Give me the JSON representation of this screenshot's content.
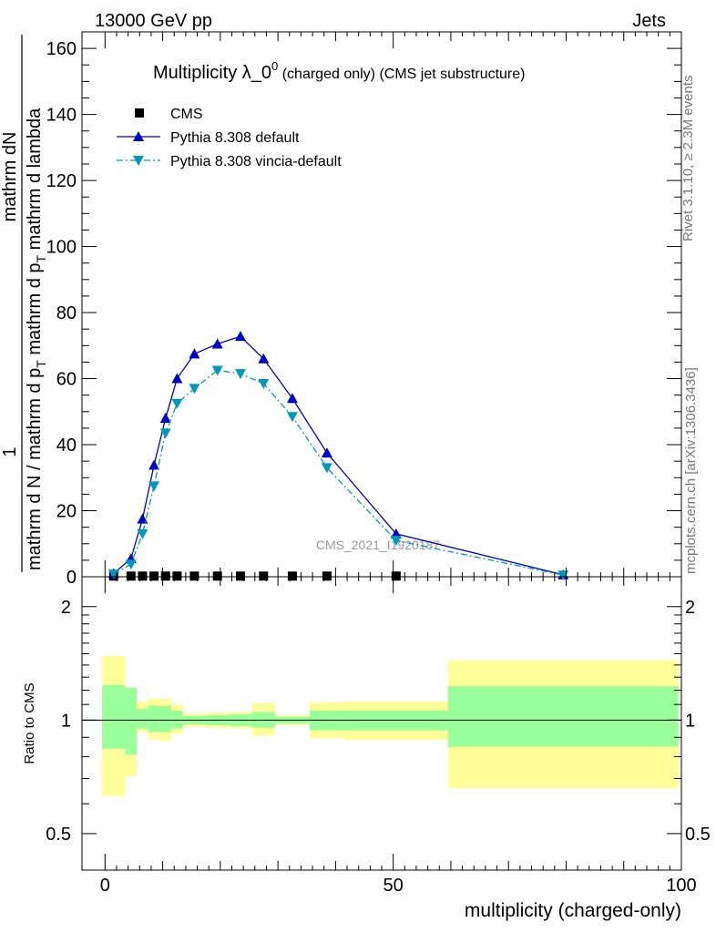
{
  "header": {
    "left": "13000 GeV pp",
    "right": "Jets"
  },
  "side_labels": {
    "rivet": "Rivet 3.1.10, ≥ 2.3M events",
    "mcplots": "mcplots.cern.ch [arXiv:1306.3436]"
  },
  "chart_data": [
    {
      "type": "line",
      "panel": "main",
      "title_main": "Multiplicity λ_0",
      "title_sup": "0",
      "title_suffix": " (charged only) (CMS jet substructure)",
      "ylabel_numerator_small": "1",
      "ylabel_numerator_big": "mathrm dN",
      "ylabel_denominator": "mathrm d N / mathrm d p",
      "ylabel_denominator_sub": "T",
      "ylabel_denominator_tail": " mathrm d p",
      "ylabel_denominator_sub2": "T",
      "ylabel_denominator_end": " mathrm d lambda",
      "ylim": [
        0,
        165
      ],
      "xlim": [
        -4,
        100
      ],
      "yticks": [
        0,
        20,
        40,
        60,
        80,
        100,
        120,
        140,
        160
      ],
      "watermark": "CMS_2021_I1920187",
      "legend_position": "top-left",
      "series": [
        {
          "name": "CMS",
          "marker": "square",
          "color": "#000000",
          "x": [
            1.5,
            4.5,
            6.5,
            8.5,
            10.5,
            12.5,
            15.5,
            19.5,
            23.5,
            27.5,
            32.5,
            38.5,
            50.5
          ],
          "values": [
            0.2,
            0.2,
            0.2,
            0.2,
            0.2,
            0.2,
            0.2,
            0.2,
            0.2,
            0.2,
            0.2,
            0.2,
            0.2
          ]
        },
        {
          "name": "Pythia 8.308 default",
          "marker": "triangle-up",
          "color": "#0000cc",
          "dash": "solid",
          "x": [
            1.5,
            4.5,
            6.5,
            8.5,
            10.5,
            12.5,
            15.5,
            19.5,
            23.5,
            27.5,
            32.5,
            38.5,
            50.5,
            79.5
          ],
          "values": [
            1.0,
            5.5,
            17.5,
            33.8,
            48.0,
            60.0,
            67.5,
            70.5,
            72.8,
            66.0,
            54.0,
            37.5,
            13.0,
            0.6
          ]
        },
        {
          "name": "Pythia 8.308 vincia-default",
          "marker": "triangle-down",
          "color": "#0099bb",
          "dash": "dashdot",
          "x": [
            1.5,
            4.5,
            6.5,
            8.5,
            10.5,
            12.5,
            15.5,
            19.5,
            23.5,
            27.5,
            32.5,
            38.5,
            50.5,
            79.5
          ],
          "values": [
            0.8,
            3.8,
            13.0,
            27.5,
            43.5,
            52.5,
            57.0,
            62.5,
            61.5,
            58.5,
            48.5,
            33.0,
            11.0,
            0.5
          ]
        }
      ]
    },
    {
      "type": "area",
      "panel": "ratio",
      "ylabel": "Ratio to CMS",
      "xlabel": "multiplicity (charged-only)",
      "xlim": [
        -4,
        100
      ],
      "ylim_log": [
        0.4,
        2.4
      ],
      "yticks": [
        0.5,
        1,
        2
      ],
      "ytick_labels": [
        "0.5",
        "1",
        "2"
      ],
      "xticks": [
        0,
        50,
        100
      ],
      "xtick_labels": [
        "0",
        "50",
        "100"
      ],
      "bins": [
        {
          "lo": -0.5,
          "hi": 3.5,
          "green": [
            0.84,
            1.24
          ],
          "yellow": [
            0.63,
            1.48
          ]
        },
        {
          "lo": 3.5,
          "hi": 5.5,
          "green": [
            0.81,
            1.22
          ],
          "yellow": [
            0.71,
            1.22
          ]
        },
        {
          "lo": 5.5,
          "hi": 7.5,
          "green": [
            0.95,
            1.07
          ],
          "yellow": [
            0.93,
            1.12
          ]
        },
        {
          "lo": 7.5,
          "hi": 9.5,
          "green": [
            0.93,
            1.09
          ],
          "yellow": [
            0.89,
            1.14
          ]
        },
        {
          "lo": 9.5,
          "hi": 11.5,
          "green": [
            0.93,
            1.09
          ],
          "yellow": [
            0.88,
            1.14
          ]
        },
        {
          "lo": 11.5,
          "hi": 13.5,
          "green": [
            0.95,
            1.06
          ],
          "yellow": [
            0.92,
            1.1
          ]
        },
        {
          "lo": 13.5,
          "hi": 17.5,
          "green": [
            0.975,
            1.025
          ],
          "yellow": [
            0.96,
            1.04
          ]
        },
        {
          "lo": 17.5,
          "hi": 21.5,
          "green": [
            0.97,
            1.03
          ],
          "yellow": [
            0.955,
            1.045
          ]
        },
        {
          "lo": 21.5,
          "hi": 25.5,
          "green": [
            0.965,
            1.035
          ],
          "yellow": [
            0.95,
            1.05
          ]
        },
        {
          "lo": 25.5,
          "hi": 29.5,
          "green": [
            0.955,
            1.05
          ],
          "yellow": [
            0.91,
            1.11
          ]
        },
        {
          "lo": 29.5,
          "hi": 35.5,
          "green": [
            0.98,
            1.02
          ],
          "yellow": [
            0.97,
            1.03
          ]
        },
        {
          "lo": 35.5,
          "hi": 41.5,
          "green": [
            0.94,
            1.06
          ],
          "yellow": [
            0.895,
            1.115
          ]
        },
        {
          "lo": 41.5,
          "hi": 59.5,
          "green": [
            0.94,
            1.06
          ],
          "yellow": [
            0.885,
            1.12
          ]
        },
        {
          "lo": 59.5,
          "hi": 99.5,
          "green": [
            0.85,
            1.23
          ],
          "yellow": [
            0.66,
            1.44
          ]
        }
      ],
      "colors": {
        "green": "#99ff99",
        "yellow": "#ffff99"
      }
    }
  ]
}
